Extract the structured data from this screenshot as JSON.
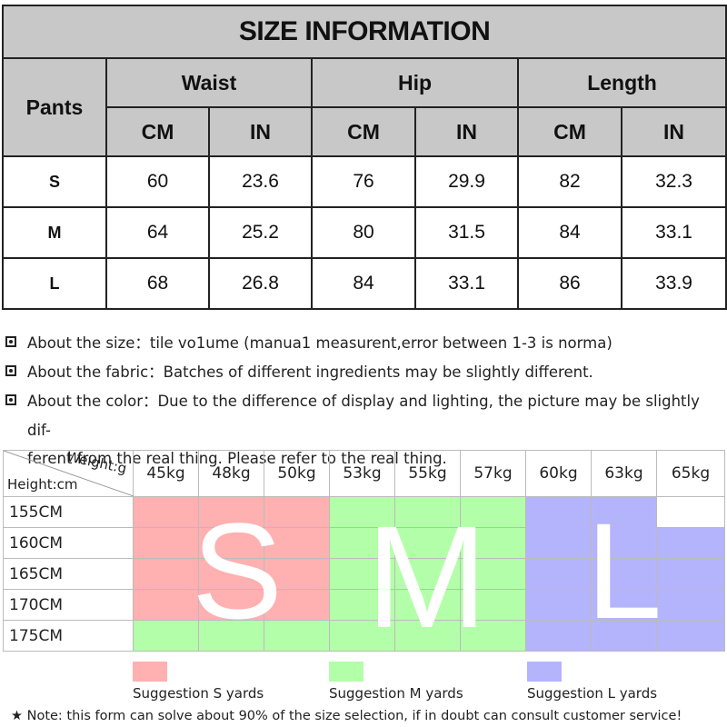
{
  "table": {
    "title": "SIZE INFORMATION",
    "pants_label": "Pants",
    "groups": [
      "Waist",
      "Hip",
      "Length"
    ],
    "units": [
      "CM",
      "IN",
      "CM",
      "IN",
      "CM",
      "IN"
    ],
    "rows": [
      {
        "size": "S",
        "values": [
          "60",
          "23.6",
          "76",
          "29.9",
          "82",
          "32.3"
        ]
      },
      {
        "size": "M",
        "values": [
          "64",
          "25.2",
          "80",
          "31.5",
          "84",
          "33.1"
        ]
      },
      {
        "size": "L",
        "values": [
          "68",
          "26.8",
          "84",
          "33.1",
          "86",
          "33.9"
        ]
      }
    ]
  },
  "notes": [
    {
      "text": "About the size：tile vo1ume (manua1 measurent,error between 1-3 is norma)"
    },
    {
      "text": "About the fabric：Batches of different ingredients may be slightly different."
    },
    {
      "text": "About the color：Due to the difference of display and lighting, the picture may be slightly dif-",
      "cont": "ferent from the real thing. Please refer to the real thing."
    }
  ],
  "grid": {
    "weight_label": "Weight:g",
    "height_label": "Height:cm",
    "weights": [
      "45kg",
      "48kg",
      "50kg",
      "53kg",
      "55kg",
      "57kg",
      "60kg",
      "63kg",
      "65kg"
    ],
    "heights": [
      "155CM",
      "160CM",
      "165CM",
      "170CM",
      "175CM"
    ],
    "cells": [
      [
        "s",
        "s",
        "s",
        "m",
        "m",
        "m",
        "l",
        "l",
        ""
      ],
      [
        "s",
        "s",
        "s",
        "m",
        "m",
        "m",
        "l",
        "l",
        "l"
      ],
      [
        "s",
        "s",
        "s",
        "m",
        "m",
        "m",
        "l",
        "l",
        "l"
      ],
      [
        "s",
        "s",
        "s",
        "m",
        "m",
        "m",
        "l",
        "l",
        "l"
      ],
      [
        "m",
        "m",
        "m",
        "m",
        "m",
        "m",
        "l",
        "l",
        "l"
      ]
    ],
    "big_letters": [
      "S",
      "M",
      "L"
    ]
  },
  "colors": {
    "s": "#ffb0b0",
    "m": "#b3ffa9",
    "l": "#b4b4fc"
  },
  "legend": [
    {
      "label": "Suggestion S yards"
    },
    {
      "label": "Suggestion M yards"
    },
    {
      "label": "Suggestion L yards"
    }
  ],
  "footnote": "★ Note: this form can solve about 90% of the size selection, if in doubt can consult customer service!"
}
